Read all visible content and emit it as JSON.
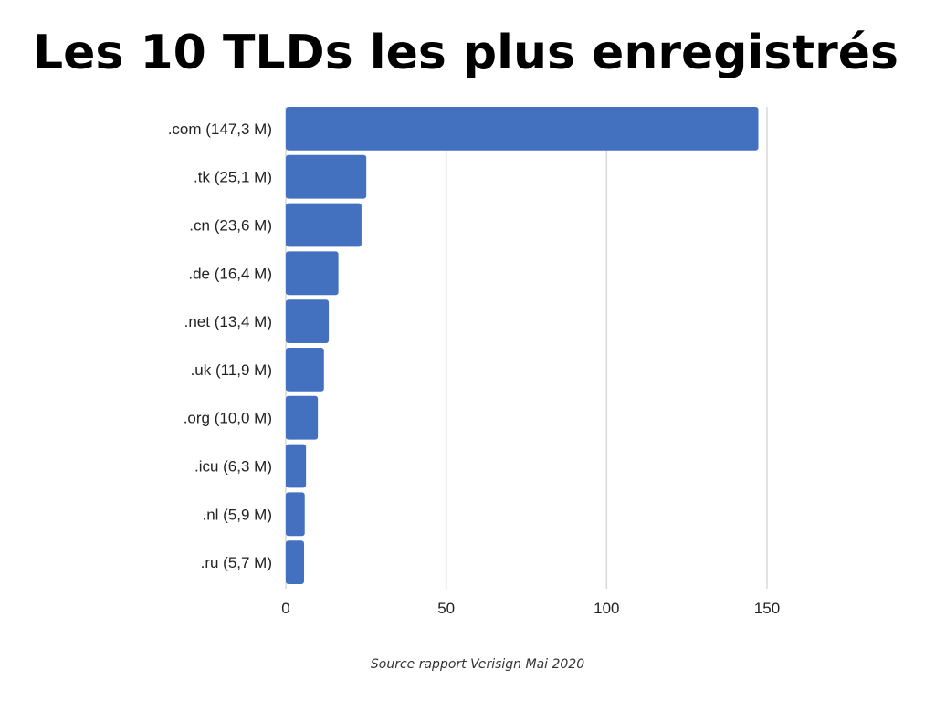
{
  "chart_data": {
    "type": "bar",
    "orientation": "horizontal",
    "title": "Les 10 TLDs les plus enregistrés",
    "categories": [
      ".com (147,3 M)",
      ".tk (25,1 M)",
      ".cn (23,6 M)",
      ".de (16,4 M)",
      ".net (13,4 M)",
      ".uk (11,9 M)",
      ".org (10,0 M)",
      ".icu (6,3 M)",
      ".nl (5,9 M)",
      ".ru (5,7 M)"
    ],
    "values": [
      147.3,
      25.1,
      23.6,
      16.4,
      13.4,
      11.9,
      10.0,
      6.3,
      5.9,
      5.7
    ],
    "xlim": [
      0,
      150
    ],
    "xticks": [
      "0",
      "50",
      "100",
      "150"
    ],
    "xtick_values": [
      0,
      50,
      100,
      150
    ],
    "grid": true,
    "bar_color": "#4470C0",
    "source": "Source rapport Verisign Mai 2020"
  }
}
